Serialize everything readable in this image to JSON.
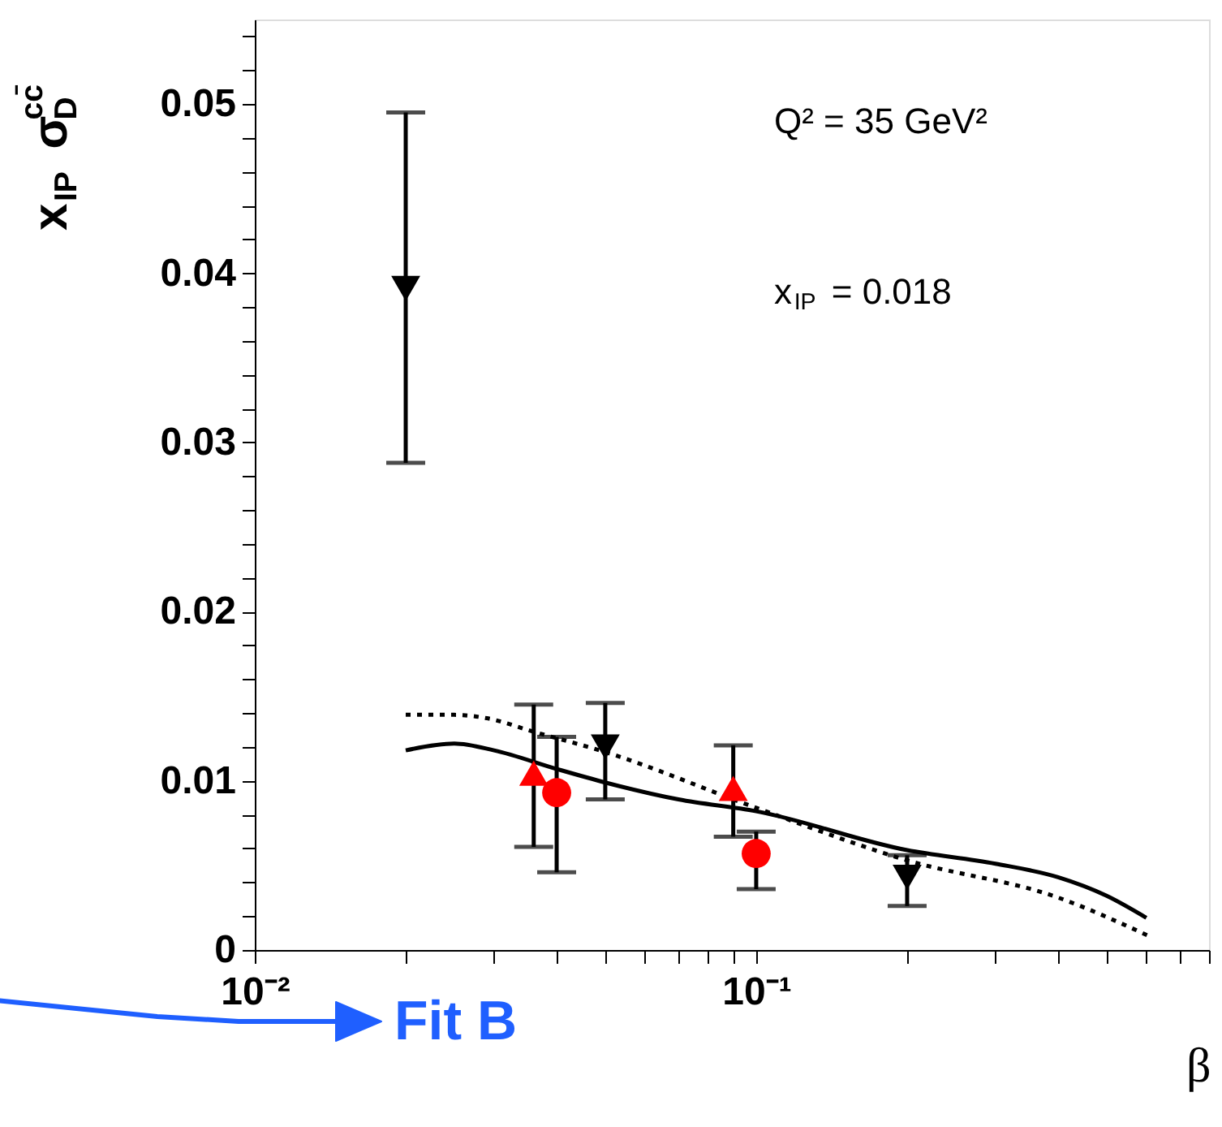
{
  "chart_data": {
    "type": "scatter",
    "xlabel": "β",
    "ylabel": "x$_{IP}$ σ$_{D}$$^{cc̄}$",
    "log": "x",
    "grid": false,
    "xlim": [
      0.01,
      0.8
    ],
    "ylim": [
      0,
      0.055
    ],
    "xticks": [
      {
        "value": 0.01,
        "label": "10⁻²"
      },
      {
        "value": 0.02,
        "label": null
      },
      {
        "value": 0.03,
        "label": null
      },
      {
        "value": 0.04,
        "label": null
      },
      {
        "value": 0.05,
        "label": null
      },
      {
        "value": 0.06,
        "label": null
      },
      {
        "value": 0.07,
        "label": null
      },
      {
        "value": 0.08,
        "label": null
      },
      {
        "value": 0.09,
        "label": null
      },
      {
        "value": 0.1,
        "label": "10⁻¹"
      },
      {
        "value": 0.2,
        "label": null
      },
      {
        "value": 0.3,
        "label": null
      },
      {
        "value": 0.4,
        "label": null
      },
      {
        "value": 0.5,
        "label": null
      },
      {
        "value": 0.6,
        "label": null
      },
      {
        "value": 0.7,
        "label": null
      },
      {
        "value": 0.8,
        "label": null
      }
    ],
    "yticks": [
      0,
      {
        "value": 0.002,
        "label": null
      },
      {
        "value": 0.004,
        "label": null
      },
      {
        "value": 0.006,
        "label": null
      },
      {
        "value": 0.008,
        "label": null
      },
      0.01,
      {
        "value": 0.012,
        "label": null
      },
      {
        "value": 0.014,
        "label": null
      },
      {
        "value": 0.016,
        "label": null
      },
      {
        "value": 0.018,
        "label": null
      },
      0.02,
      {
        "value": 0.022,
        "label": null
      },
      {
        "value": 0.024,
        "label": null
      },
      {
        "value": 0.026,
        "label": null
      },
      {
        "value": 0.028,
        "label": null
      },
      0.03,
      {
        "value": 0.032,
        "label": null
      },
      {
        "value": 0.034,
        "label": null
      },
      {
        "value": 0.036,
        "label": null
      },
      {
        "value": 0.038,
        "label": null
      },
      0.04,
      {
        "value": 0.042,
        "label": null
      },
      {
        "value": 0.044,
        "label": null
      },
      {
        "value": 0.046,
        "label": null
      },
      {
        "value": 0.048,
        "label": null
      },
      0.05,
      {
        "value": 0.052,
        "label": null
      },
      {
        "value": 0.054,
        "label": null
      }
    ],
    "series": [
      {
        "type": "line",
        "color": "#000000",
        "line_style": "solid",
        "marker": "none",
        "x": [
          0.02,
          0.025,
          0.03,
          0.04,
          0.05,
          0.07,
          0.1,
          0.2,
          0.3,
          0.4,
          0.5,
          0.6
        ],
        "values": [
          0.0118,
          0.0122,
          0.0118,
          0.0107,
          0.0099,
          0.0089,
          0.0082,
          0.0059,
          0.0051,
          0.0043,
          0.0032,
          0.0019
        ]
      },
      {
        "type": "line",
        "color": "#000000",
        "line_style": "dotted",
        "marker": "none",
        "x": [
          0.02,
          0.025,
          0.029,
          0.036,
          0.05,
          0.1,
          0.2,
          0.4,
          0.61
        ],
        "values": [
          0.0139,
          0.0139,
          0.0137,
          0.0129,
          0.0117,
          0.0084,
          0.0053,
          0.0031,
          0.0008
        ]
      },
      {
        "color": "#000000",
        "marker": "triangle-down",
        "x": [
          0.02,
          0.05,
          0.2
        ],
        "values": [
          0.0391,
          0.012,
          0.0043
        ],
        "errors": [
          [
            0.0288,
            0.0495
          ],
          [
            0.0089,
            0.0146
          ],
          [
            0.0026,
            0.0056
          ]
        ]
      },
      {
        "color": "#ff0000",
        "marker": "triangle",
        "x": [
          0.036,
          0.09
        ],
        "values": [
          0.0102,
          0.0093
        ],
        "errors": [
          [
            0.0061,
            0.0145
          ],
          [
            0.0067,
            0.0121
          ]
        ]
      },
      {
        "color": "#ff0000",
        "marker": "circle",
        "x": [
          0.04,
          0.1
        ],
        "values": [
          0.0093,
          0.0057
        ],
        "errors": [
          [
            0.0046,
            0.0126
          ],
          [
            0.0036,
            0.007
          ]
        ]
      }
    ],
    "annotations": [
      "Q² = 35 GeV²",
      "x$_{IP}$ = 0.018",
      "Fit B"
    ]
  }
}
